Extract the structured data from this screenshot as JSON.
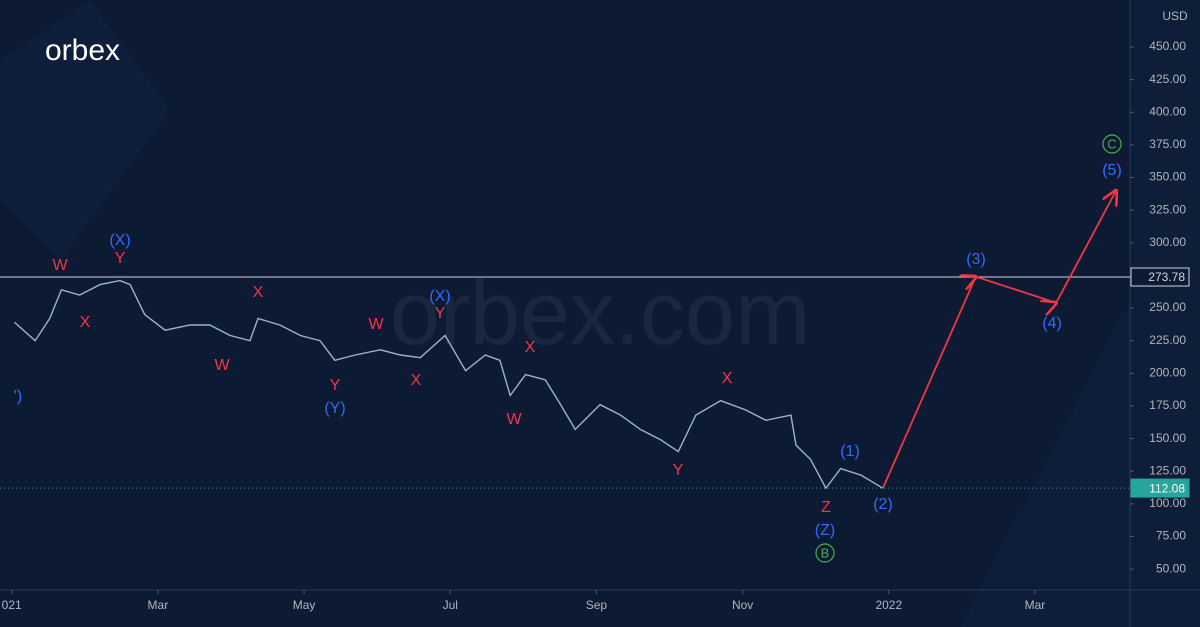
{
  "branding": {
    "logo": "orbex",
    "watermark": "orbex.com"
  },
  "chart_data": {
    "type": "line",
    "currency": "USD",
    "x": [
      0.04,
      0.32,
      0.52,
      0.68,
      0.93,
      1.21,
      1.48,
      1.62,
      1.82,
      2.1,
      2.44,
      2.71,
      2.99,
      3.26,
      3.37,
      3.67,
      3.95,
      4.22,
      4.42,
      4.7,
      5.04,
      5.32,
      5.59,
      5.93,
      6.21,
      6.48,
      6.68,
      6.82,
      7.03,
      7.3,
      7.51,
      7.71,
      8.05,
      8.33,
      8.6,
      8.88,
      9.12,
      9.36,
      9.7,
      10.04,
      10.32,
      10.66,
      10.73,
      10.93,
      11.14,
      11.34,
      11.62,
      11.92
    ],
    "series": [
      {
        "color": "#9fb3c8",
        "values": [
          239,
          225,
          242,
          264,
          260,
          268,
          271,
          268,
          245,
          233,
          237,
          237,
          229,
          225,
          242,
          237,
          229,
          225,
          210,
          214,
          218,
          214,
          212,
          229,
          202,
          214,
          210,
          183,
          199,
          195,
          176,
          157,
          176,
          168,
          157,
          149,
          140,
          168,
          179,
          172,
          164,
          168,
          145,
          134,
          112,
          127,
          122,
          112
        ]
      }
    ],
    "projection": {
      "color": "#f23645",
      "x": [
        11.92,
        13.19,
        14.29,
        15.11
      ],
      "values": [
        112.08,
        274,
        254,
        340
      ]
    },
    "hlines": [
      {
        "value": 273.78,
        "color": "#d1d4dc"
      },
      {
        "value": 112.08,
        "color": "#26a69a"
      }
    ],
    "xlim": [
      -0.16,
      15.3
    ],
    "xticks": [
      {
        "value": 0,
        "label": "021"
      },
      {
        "value": 2,
        "label": "Mar"
      },
      {
        "value": 4,
        "label": "May"
      },
      {
        "value": 6,
        "label": "Jul"
      },
      {
        "value": 8,
        "label": "Sep"
      },
      {
        "value": 10,
        "label": "Nov"
      },
      {
        "value": 12,
        "label": "2022"
      },
      {
        "value": 14,
        "label": "Mar"
      }
    ],
    "ylim": [
      34,
      486
    ],
    "yticks": [
      {
        "value": 50,
        "label": "50.00"
      },
      {
        "value": 75,
        "label": "75.00"
      },
      {
        "value": 100,
        "label": "100.00"
      },
      {
        "value": 125,
        "label": "125.00"
      },
      {
        "value": 150,
        "label": "150.00"
      },
      {
        "value": 175,
        "label": "175.00"
      },
      {
        "value": 200,
        "label": "200.00"
      },
      {
        "value": 225,
        "label": "225.00"
      },
      {
        "value": 250,
        "label": "250.00"
      },
      {
        "value": 275,
        "label": "275.00"
      },
      {
        "value": 300,
        "label": "300.00"
      },
      {
        "value": 325,
        "label": "325.00"
      },
      {
        "value": 350,
        "label": "350.00"
      },
      {
        "value": 375,
        "label": "375.00"
      },
      {
        "value": 400,
        "label": "400.00"
      },
      {
        "value": 425,
        "label": "425.00"
      },
      {
        "value": 450,
        "label": "450.00"
      }
    ],
    "grid": false,
    "annotations": [
      {
        "text": "W",
        "color": "#f23645"
      },
      {
        "text": "(X)",
        "color": "#2f6bff"
      },
      {
        "text": "Y",
        "color": "#f23645"
      },
      {
        "text": "X",
        "color": "#f23645"
      },
      {
        "text": "X",
        "color": "#f23645"
      },
      {
        "text": "W",
        "color": "#f23645"
      },
      {
        "text": "Y",
        "color": "#f23645"
      },
      {
        "text": "(Y)",
        "color": "#2f6bff"
      },
      {
        "text": "W",
        "color": "#f23645"
      },
      {
        "text": "X",
        "color": "#f23645"
      },
      {
        "text": "(X)",
        "color": "#2f6bff"
      },
      {
        "text": "Y",
        "color": "#f23645"
      },
      {
        "text": "X",
        "color": "#f23645"
      },
      {
        "text": "W",
        "color": "#f23645"
      },
      {
        "text": "Y",
        "color": "#f23645"
      },
      {
        "text": "X",
        "color": "#f23645"
      },
      {
        "text": "Z",
        "color": "#f23645"
      },
      {
        "text": "(Z)",
        "color": "#2f6bff"
      },
      {
        "text": "B",
        "color": "#4caf50",
        "circled": true
      },
      {
        "text": "(1)",
        "color": "#2f6bff"
      },
      {
        "text": "(2)",
        "color": "#2f6bff"
      },
      {
        "text": "(3)",
        "color": "#2f6bff"
      },
      {
        "text": "(4)",
        "color": "#2f6bff"
      },
      {
        "text": "(5)",
        "color": "#2f6bff"
      },
      {
        "text": "C",
        "color": "#4caf50",
        "circled": true
      },
      {
        "text": "')",
        "color": "#2f6bff"
      }
    ]
  }
}
